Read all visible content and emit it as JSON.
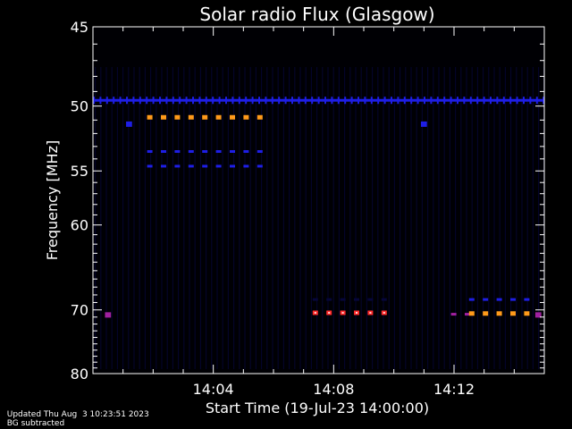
{
  "chart_data": {
    "type": "heatmap",
    "title": "Solar radio Flux (Glasgow)",
    "xlabel": "Start Time (19-Jul-23 14:00:00)",
    "ylabel": "Frequency [MHz]",
    "x_unit": "minutes after 14:00:00",
    "xlim": [
      0,
      15
    ],
    "x_ticks": [
      {
        "value": 4,
        "label": "14:04"
      },
      {
        "value": 8,
        "label": "14:08"
      },
      {
        "value": 12,
        "label": "14:12"
      }
    ],
    "y_ticks": [
      {
        "value": 45,
        "label": "45"
      },
      {
        "value": 50,
        "label": "50"
      },
      {
        "value": 55,
        "label": "55"
      },
      {
        "value": 60,
        "label": "60"
      },
      {
        "value": 70,
        "label": "70"
      },
      {
        "value": 80,
        "label": "80"
      }
    ],
    "y_scale": "reciprocal",
    "ylim": [
      45,
      80
    ],
    "grid": false,
    "legend": "none",
    "colors": {
      "background": "#000000",
      "faint": "#06063a",
      "low": "#1e1ee6",
      "mid": "#a020a0",
      "high": "#ff2a2a",
      "peak": "#ff9a1a"
    },
    "features": [
      {
        "freq": 49.6,
        "t_start": 0.0,
        "t_end": 15.0,
        "level": "low",
        "pattern": "continuous"
      },
      {
        "freq": 50.8,
        "t_start": 1.8,
        "t_end": 5.6,
        "level": "peak",
        "pattern": "dashed"
      },
      {
        "freq": 53.4,
        "t_start": 1.8,
        "t_end": 5.6,
        "level": "low",
        "pattern": "dashed"
      },
      {
        "freq": 54.6,
        "t_start": 1.8,
        "t_end": 5.6,
        "level": "low",
        "pattern": "dashed"
      },
      {
        "freq": 51.3,
        "t_start": 1.1,
        "t_end": 1.3,
        "level": "low",
        "pattern": "dot"
      },
      {
        "freq": 51.3,
        "t_start": 10.9,
        "t_end": 11.1,
        "level": "low",
        "pattern": "dot"
      },
      {
        "freq": 70.4,
        "t_start": 7.3,
        "t_end": 10.0,
        "level": "high",
        "pattern": "dashed"
      },
      {
        "freq": 68.6,
        "t_start": 7.3,
        "t_end": 10.0,
        "level": "faint",
        "pattern": "dashed"
      },
      {
        "freq": 70.7,
        "t_start": 0.4,
        "t_end": 0.6,
        "level": "mid",
        "pattern": "dot"
      },
      {
        "freq": 70.6,
        "t_start": 11.9,
        "t_end": 12.7,
        "level": "mid",
        "pattern": "dashed"
      },
      {
        "freq": 70.5,
        "t_start": 12.5,
        "t_end": 14.4,
        "level": "peak",
        "pattern": "dashed"
      },
      {
        "freq": 68.6,
        "t_start": 12.5,
        "t_end": 14.4,
        "level": "low",
        "pattern": "dashed"
      },
      {
        "freq": 70.7,
        "t_start": 14.7,
        "t_end": 14.9,
        "level": "mid",
        "pattern": "dot"
      }
    ]
  },
  "footer": {
    "updated": "Updated Thu Aug  3 10:23:51 2023",
    "note": "BG subtracted"
  }
}
